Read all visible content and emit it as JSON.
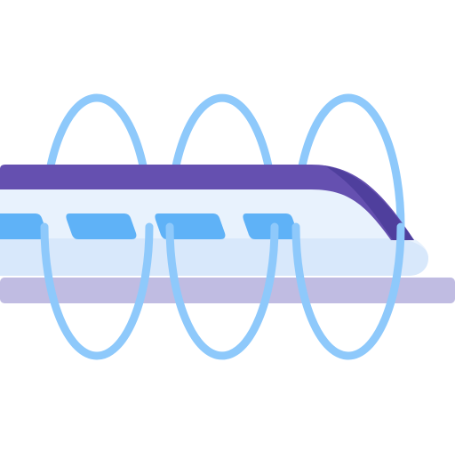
{
  "icon": {
    "name": "maglev-train-icon",
    "colors": {
      "roof": "#6550b0",
      "roof_shadow": "#5642a0",
      "nose": "#4f3f9d",
      "body": "#e8f2fd",
      "body_lower": "#d8e8fb",
      "windows": "#5fb2f7",
      "rail": "#c0bce2",
      "rings": "#8ec9fb"
    }
  }
}
